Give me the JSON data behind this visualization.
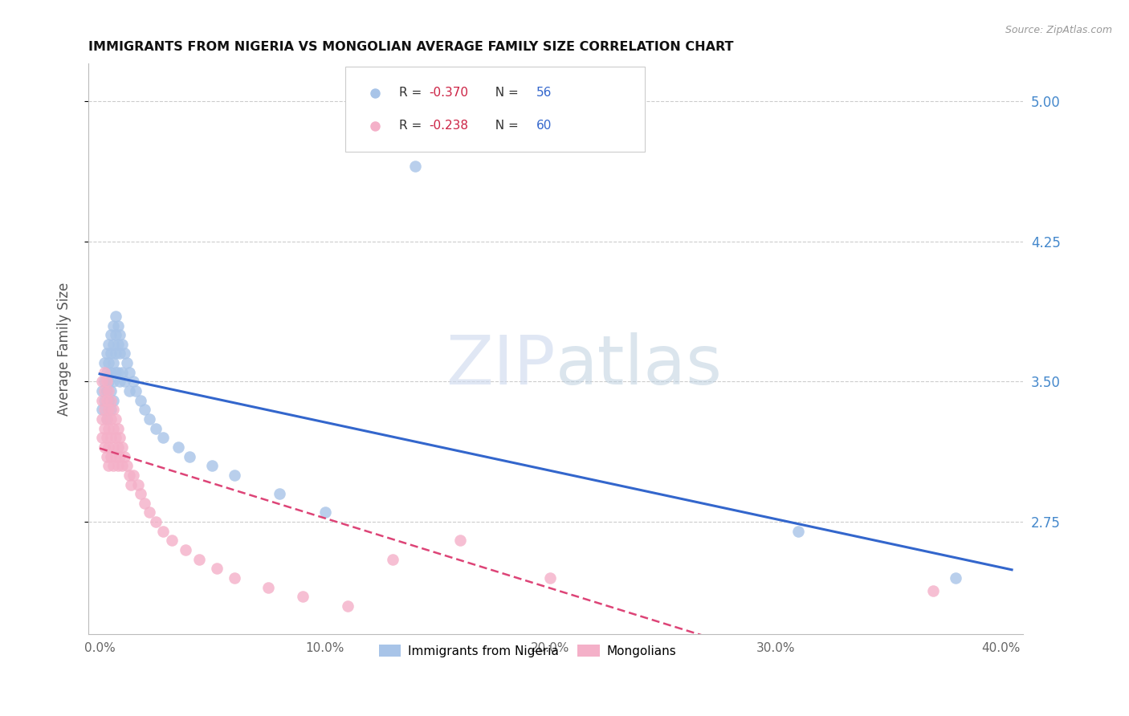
{
  "title": "IMMIGRANTS FROM NIGERIA VS MONGOLIAN AVERAGE FAMILY SIZE CORRELATION CHART",
  "source": "Source: ZipAtlas.com",
  "ylabel": "Average Family Size",
  "xlabel_ticks": [
    "0.0%",
    "10.0%",
    "20.0%",
    "30.0%",
    "40.0%"
  ],
  "xlabel_tick_vals": [
    0.0,
    0.1,
    0.2,
    0.3,
    0.4
  ],
  "right_yticks": [
    2.75,
    3.5,
    4.25,
    5.0
  ],
  "ylim": [
    2.15,
    5.2
  ],
  "xlim": [
    -0.005,
    0.41
  ],
  "nigeria_R": -0.37,
  "nigeria_N": 56,
  "mongolian_R": -0.238,
  "mongolian_N": 60,
  "nigeria_color": "#a8c4e8",
  "mongolian_color": "#f4b0c8",
  "nigeria_line_color": "#3366cc",
  "mongolian_line_color": "#dd4477",
  "watermark_zip": "ZIP",
  "watermark_atlas": "atlas",
  "nigeria_x": [
    0.001,
    0.001,
    0.002,
    0.002,
    0.002,
    0.003,
    0.003,
    0.003,
    0.003,
    0.004,
    0.004,
    0.004,
    0.004,
    0.005,
    0.005,
    0.005,
    0.005,
    0.005,
    0.006,
    0.006,
    0.006,
    0.006,
    0.006,
    0.007,
    0.007,
    0.007,
    0.007,
    0.008,
    0.008,
    0.008,
    0.009,
    0.009,
    0.009,
    0.01,
    0.01,
    0.011,
    0.011,
    0.012,
    0.013,
    0.013,
    0.015,
    0.016,
    0.018,
    0.02,
    0.022,
    0.025,
    0.028,
    0.035,
    0.04,
    0.05,
    0.06,
    0.08,
    0.1,
    0.14,
    0.31,
    0.38
  ],
  "nigeria_y": [
    3.45,
    3.35,
    3.6,
    3.5,
    3.4,
    3.65,
    3.55,
    3.45,
    3.3,
    3.7,
    3.6,
    3.5,
    3.4,
    3.75,
    3.65,
    3.55,
    3.45,
    3.35,
    3.8,
    3.7,
    3.6,
    3.5,
    3.4,
    3.85,
    3.75,
    3.65,
    3.55,
    3.8,
    3.7,
    3.55,
    3.75,
    3.65,
    3.5,
    3.7,
    3.55,
    3.65,
    3.5,
    3.6,
    3.55,
    3.45,
    3.5,
    3.45,
    3.4,
    3.35,
    3.3,
    3.25,
    3.2,
    3.15,
    3.1,
    3.05,
    3.0,
    2.9,
    2.8,
    4.65,
    2.7,
    2.45
  ],
  "mongolian_x": [
    0.001,
    0.001,
    0.001,
    0.001,
    0.002,
    0.002,
    0.002,
    0.002,
    0.002,
    0.003,
    0.003,
    0.003,
    0.003,
    0.003,
    0.004,
    0.004,
    0.004,
    0.004,
    0.004,
    0.005,
    0.005,
    0.005,
    0.005,
    0.006,
    0.006,
    0.006,
    0.006,
    0.007,
    0.007,
    0.007,
    0.008,
    0.008,
    0.008,
    0.009,
    0.009,
    0.01,
    0.01,
    0.011,
    0.012,
    0.013,
    0.014,
    0.015,
    0.017,
    0.018,
    0.02,
    0.022,
    0.025,
    0.028,
    0.032,
    0.038,
    0.044,
    0.052,
    0.06,
    0.075,
    0.09,
    0.11,
    0.13,
    0.16,
    0.2,
    0.37
  ],
  "mongolian_y": [
    3.5,
    3.4,
    3.3,
    3.2,
    3.55,
    3.45,
    3.35,
    3.25,
    3.15,
    3.5,
    3.4,
    3.3,
    3.2,
    3.1,
    3.45,
    3.35,
    3.25,
    3.15,
    3.05,
    3.4,
    3.3,
    3.2,
    3.1,
    3.35,
    3.25,
    3.15,
    3.05,
    3.3,
    3.2,
    3.1,
    3.25,
    3.15,
    3.05,
    3.2,
    3.1,
    3.15,
    3.05,
    3.1,
    3.05,
    3.0,
    2.95,
    3.0,
    2.95,
    2.9,
    2.85,
    2.8,
    2.75,
    2.7,
    2.65,
    2.6,
    2.55,
    2.5,
    2.45,
    2.4,
    2.35,
    2.3,
    2.55,
    2.65,
    2.45,
    2.38
  ]
}
